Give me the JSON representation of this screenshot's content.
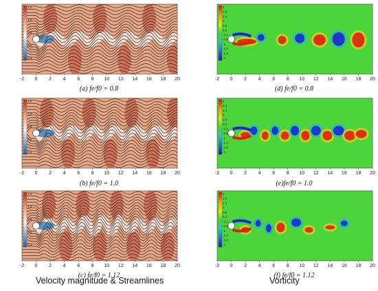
{
  "left_column_title": "Velocity magnitude & Streamlines",
  "right_column_title": "Vorticity",
  "x_ticks": [
    "-2",
    "0",
    "2",
    "4",
    "6",
    "8",
    "10",
    "12",
    "14",
    "16",
    "18",
    "20"
  ],
  "panels": [
    {
      "id": "a",
      "caption": "(a) fe/f0 = 0.8",
      "field": "velocity",
      "colorbar": [
        "1.5",
        "1.2",
        "0.9",
        "0.6",
        "0.3"
      ]
    },
    {
      "id": "b",
      "caption": "(b) fe/f0 = 1.0",
      "field": "velocity",
      "colorbar": [
        "1.5",
        "1.2",
        "0.9",
        "0.6",
        "0.3"
      ]
    },
    {
      "id": "c",
      "caption": "(c) fe/f0 = 1.12",
      "field": "velocity",
      "colorbar": [
        "1.5",
        "1.2",
        "0.9",
        "0.6",
        "0.3"
      ]
    },
    {
      "id": "d",
      "caption": "(d) fe/f0 = 0.8",
      "field": "vorticity",
      "colorbar": [
        "2",
        "1.8",
        "1.4",
        "1",
        "0.6",
        "0.2",
        "-0.2",
        "-0.6",
        "-1",
        "-1.4",
        "-1.8",
        "-2"
      ]
    },
    {
      "id": "e",
      "caption": "(e)fe/f0 = 1.0",
      "field": "vorticity",
      "colorbar": [
        "2",
        "1.8",
        "1.4",
        "1",
        "0.6",
        "0.2",
        "-0.2",
        "-0.6",
        "-1",
        "-1.4",
        "-1.8",
        "-2"
      ]
    },
    {
      "id": "f",
      "caption": "(f) fe/f0 = 1.12",
      "field": "vorticity",
      "colorbar": [
        "2",
        "1.8",
        "1.4",
        "1",
        "0.6",
        "0.2",
        "-0.2",
        "-0.6",
        "-1",
        "-1.4",
        "-1.8",
        "-2"
      ]
    }
  ],
  "colors": {
    "velocity_bg": "#e8a887",
    "velocity_low": "#2a78b8",
    "velocity_high": "#b5301f",
    "vorticity_bg": "#4cd53a",
    "vorticity_pos": "#e02010",
    "vorticity_neg": "#1a2ad0",
    "streamline": "#111111"
  }
}
